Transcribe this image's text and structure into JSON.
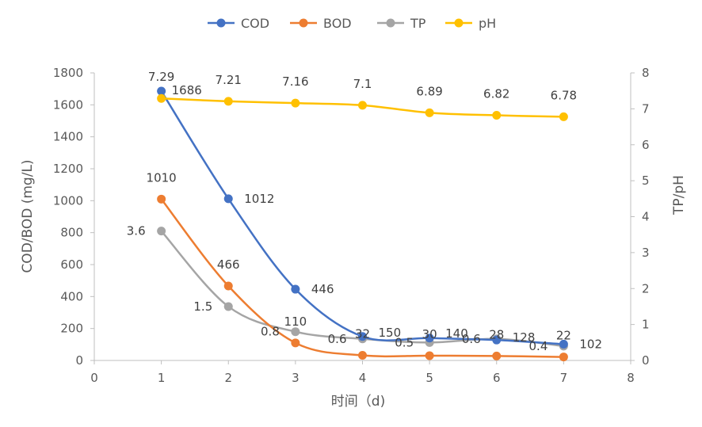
{
  "chart_data": {
    "type": "line",
    "smooth": true,
    "x": [
      1,
      2,
      3,
      4,
      5,
      6,
      7
    ],
    "xlabel": "时间（d)",
    "ylabel": "COD/BOD (mg/L)",
    "y2label": "TP/pH",
    "xlim": [
      0,
      8
    ],
    "xticks": [
      0,
      1,
      2,
      3,
      4,
      5,
      6,
      7,
      8
    ],
    "ylim": [
      0,
      1800
    ],
    "yticks": [
      0,
      200,
      400,
      600,
      800,
      1000,
      1200,
      1400,
      1600,
      1800
    ],
    "y2lim": [
      0,
      8
    ],
    "y2ticks": [
      0,
      1,
      2,
      3,
      4,
      5,
      6,
      7,
      8
    ],
    "grid": false,
    "legend_position": "top",
    "series": [
      {
        "name": "COD",
        "axis": "left",
        "color": "#4472C4",
        "values": [
          1686,
          1012,
          446,
          150,
          140,
          128,
          102
        ],
        "labels": [
          "1686",
          "1012",
          "446",
          "150",
          "140",
          "128",
          "102"
        ]
      },
      {
        "name": "BOD",
        "axis": "left",
        "color": "#ED7D31",
        "values": [
          1010,
          466,
          110,
          32,
          30,
          28,
          22
        ],
        "labels": [
          "1010",
          "466",
          "110",
          "32",
          "30",
          "28",
          "22"
        ]
      },
      {
        "name": "TP",
        "axis": "right",
        "color": "#A5A5A5",
        "values": [
          3.6,
          1.5,
          0.8,
          0.6,
          0.5,
          0.6,
          0.4
        ],
        "labels": [
          "3.6",
          "1.5",
          "0.8",
          "0.6",
          "0.5",
          "0.6",
          "0.4"
        ]
      },
      {
        "name": "pH",
        "axis": "right",
        "color": "#FFC000",
        "values": [
          7.29,
          7.21,
          7.16,
          7.1,
          6.89,
          6.82,
          6.78
        ],
        "labels": [
          "7.29",
          "7.21",
          "7.16",
          "7.1",
          "6.89",
          "6.82",
          "6.78"
        ]
      }
    ]
  }
}
